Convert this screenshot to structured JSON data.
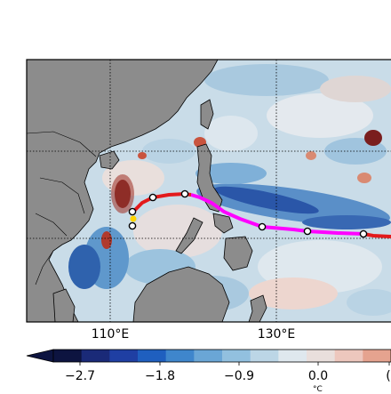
{
  "map": {
    "longitude_labels": [
      "110°E",
      "130°E"
    ],
    "ocean_field": "sea surface anomaly (shaded)",
    "land_color": "#8c8c8c",
    "track": {
      "colors": {
        "early": "#e31a1c",
        "late": "#ff00ff",
        "marker_edge": "#000000",
        "marker_fill": "#ffffff"
      },
      "markers": 7
    }
  },
  "colorbar": {
    "tick_labels": [
      "−2.7",
      "−1.8",
      "−0.9",
      "0.0",
      "("
    ],
    "unit_fragment": "°C",
    "colors": [
      "#0d1440",
      "#1a2a78",
      "#1f3fa3",
      "#1f5fbf",
      "#3f86cc",
      "#6aa6d6",
      "#92c0df",
      "#bcd6e6",
      "#dfe8ee",
      "#e9dfdc",
      "#edc7bd",
      "#e5a38f"
    ]
  }
}
